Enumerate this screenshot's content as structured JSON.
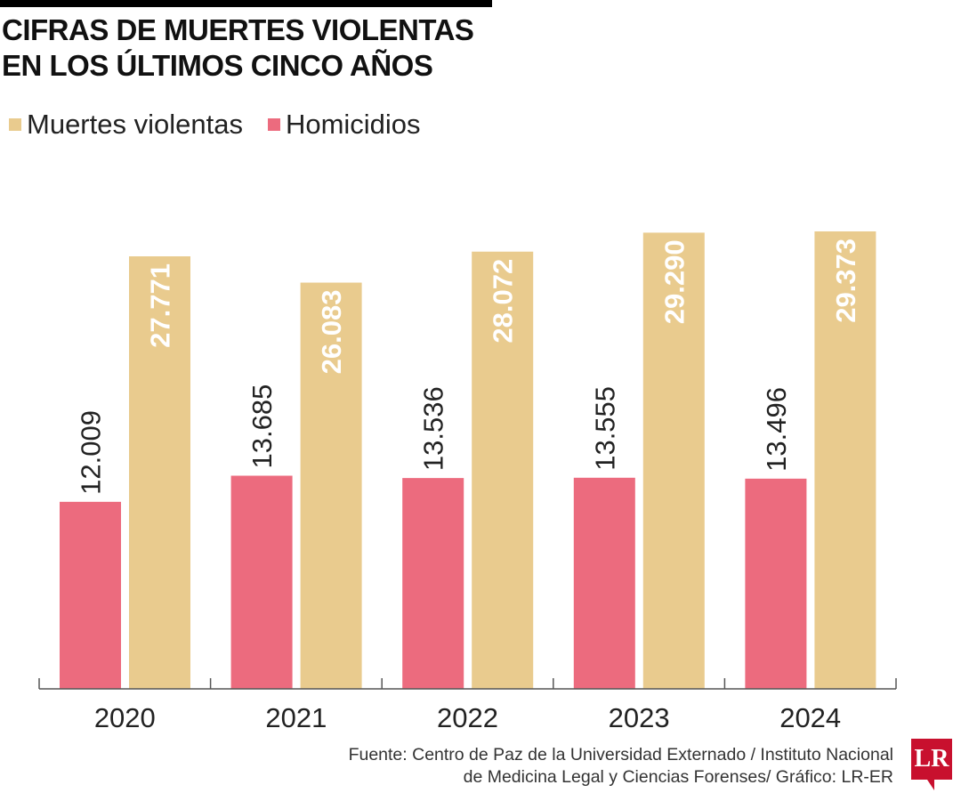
{
  "chart_data": {
    "type": "bar",
    "title": "CIFRAS DE MUERTES VIOLENTAS EN LOS ÚLTIMOS CINCO AÑOS",
    "categories": [
      "2020",
      "2021",
      "2022",
      "2023",
      "2024"
    ],
    "series": [
      {
        "name": "Homicidios",
        "color": "#ec6b7e",
        "values": [
          12009,
          13685,
          13536,
          13555,
          13496
        ],
        "labels": [
          "12.009",
          "13.685",
          "13.536",
          "13.555",
          "13.496"
        ]
      },
      {
        "name": "Muertes violentas",
        "color": "#e9cb8e",
        "values": [
          27771,
          26083,
          28072,
          29290,
          29373
        ],
        "labels": [
          "27.771",
          "26.083",
          "28.072",
          "29.290",
          "29.373"
        ]
      }
    ],
    "ylim": [
      0,
      30000
    ],
    "grid": false,
    "legend": "top-left",
    "source": [
      "Fuente: Centro de Paz de la Universidad Externado / Instituto Nacional",
      "de Medicina Legal y Ciencias Forenses/ Gráfico: LR-ER"
    ],
    "logo": "LR"
  }
}
